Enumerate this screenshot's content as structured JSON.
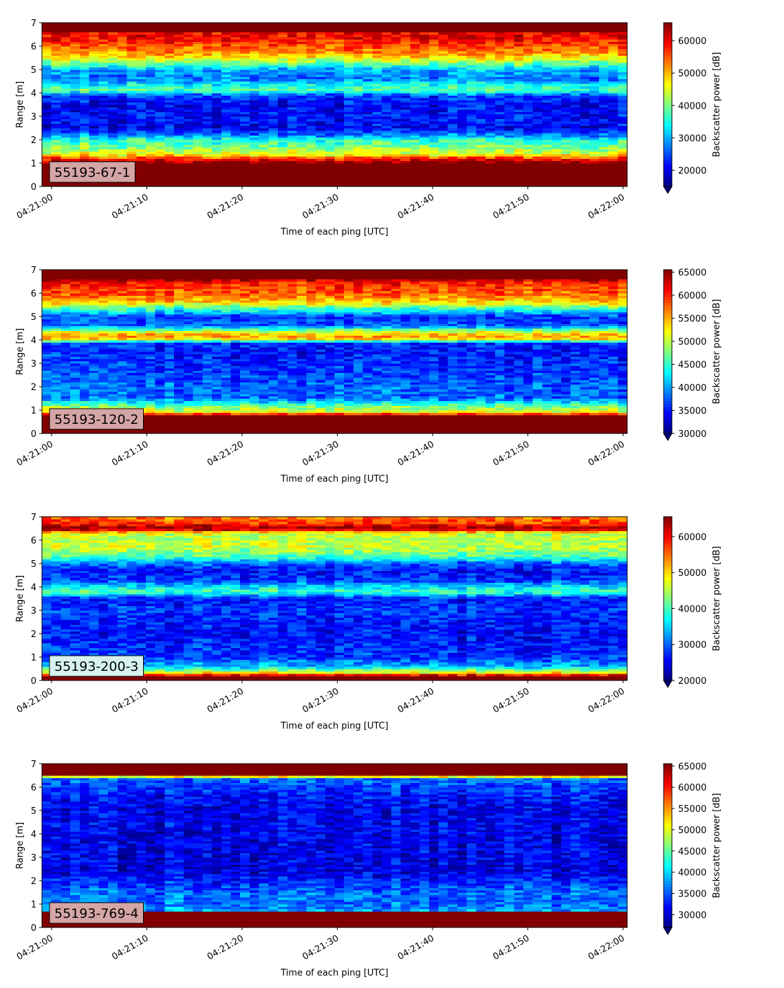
{
  "figure": {
    "xlabel": "Time of each ping [UTC]",
    "ylabel": "Range [m]",
    "colorbar_label": "Backscatter power [dB]",
    "colormap": "jet",
    "colormap_extend": "min",
    "x_tick_labels": [
      "04:21:00",
      "04:21:10",
      "04:21:20",
      "04:21:30",
      "04:21:40",
      "04:21:50",
      "04:22:00"
    ],
    "y_tick_labels": [
      "0",
      "1",
      "2",
      "3",
      "4",
      "5",
      "6",
      "7"
    ]
  },
  "chart_data": [
    {
      "type": "heatmap",
      "label": "55193-67-1",
      "label_box_color": "#d4a5a5",
      "x": {
        "start": "04:21:00",
        "end": "04:22:00",
        "unit": "UTC time"
      },
      "ylim": [
        0,
        7
      ],
      "ylabel": "Range [m]",
      "xlabel": "Time of each ping [UTC]",
      "colorbar": {
        "min": 15000,
        "max": 65535,
        "ticks": [
          20000,
          30000,
          40000,
          50000,
          60000
        ],
        "label": "Backscatter power [dB]"
      },
      "profile_by_range": [
        {
          "range": 0.0,
          "value": 65535
        },
        {
          "range": 0.25,
          "value": 65535
        },
        {
          "range": 1.0,
          "value": 65535
        },
        {
          "range": 1.2,
          "value": 58000
        },
        {
          "range": 1.4,
          "value": 45000
        },
        {
          "range": 1.7,
          "value": 40000
        },
        {
          "range": 2.0,
          "value": 36000
        },
        {
          "range": 2.2,
          "value": 28000
        },
        {
          "range": 2.5,
          "value": 21000
        },
        {
          "range": 3.0,
          "value": 22000
        },
        {
          "range": 3.5,
          "value": 21000
        },
        {
          "range": 3.9,
          "value": 24000
        },
        {
          "range": 4.1,
          "value": 38000
        },
        {
          "range": 4.3,
          "value": 36000
        },
        {
          "range": 4.6,
          "value": 27000
        },
        {
          "range": 5.0,
          "value": 30000
        },
        {
          "range": 5.3,
          "value": 40000
        },
        {
          "range": 5.6,
          "value": 50000
        },
        {
          "range": 6.0,
          "value": 55000
        },
        {
          "range": 6.3,
          "value": 59000
        },
        {
          "range": 6.6,
          "value": 60000
        },
        {
          "range": 6.65,
          "value": 65535
        },
        {
          "range": 7.0,
          "value": 65535
        }
      ]
    },
    {
      "type": "heatmap",
      "label": "55193-120-2",
      "label_box_color": "#d4a5a5",
      "x": {
        "start": "04:21:00",
        "end": "04:22:00",
        "unit": "UTC time"
      },
      "ylim": [
        0,
        7
      ],
      "ylabel": "Range [m]",
      "xlabel": "Time of each ping [UTC]",
      "colorbar": {
        "min": 30000,
        "max": 65535,
        "ticks": [
          30000,
          35000,
          40000,
          45000,
          50000,
          55000,
          60000,
          65000
        ],
        "label": "Backscatter power [dB]"
      },
      "profile_by_range": [
        {
          "range": 0.0,
          "value": 65535
        },
        {
          "range": 0.25,
          "value": 65535
        },
        {
          "range": 0.8,
          "value": 65535
        },
        {
          "range": 0.9,
          "value": 52000
        },
        {
          "range": 1.2,
          "value": 47000
        },
        {
          "range": 1.5,
          "value": 38000
        },
        {
          "range": 2.0,
          "value": 38000
        },
        {
          "range": 2.5,
          "value": 36500
        },
        {
          "range": 3.0,
          "value": 36000
        },
        {
          "range": 3.5,
          "value": 35000
        },
        {
          "range": 3.9,
          "value": 36000
        },
        {
          "range": 4.0,
          "value": 52000
        },
        {
          "range": 4.2,
          "value": 56000
        },
        {
          "range": 4.4,
          "value": 49000
        },
        {
          "range": 4.6,
          "value": 38000
        },
        {
          "range": 5.0,
          "value": 36000
        },
        {
          "range": 5.3,
          "value": 44000
        },
        {
          "range": 5.6,
          "value": 53000
        },
        {
          "range": 6.0,
          "value": 58000
        },
        {
          "range": 6.5,
          "value": 60000
        },
        {
          "range": 6.6,
          "value": 65535
        },
        {
          "range": 7.0,
          "value": 65535
        }
      ]
    },
    {
      "type": "heatmap",
      "label": "55193-200-3",
      "label_box_color": "#d6f2f0",
      "x": {
        "start": "04:21:00",
        "end": "04:22:00",
        "unit": "UTC time"
      },
      "ylim": [
        0,
        7
      ],
      "ylabel": "Range [m]",
      "xlabel": "Time of each ping [UTC]",
      "colorbar": {
        "min": 20000,
        "max": 65535,
        "ticks": [
          20000,
          30000,
          40000,
          50000,
          60000
        ],
        "label": "Backscatter power [dB]"
      },
      "profile_by_range": [
        {
          "range": 0.0,
          "value": 65535
        },
        {
          "range": 0.2,
          "value": 65535
        },
        {
          "range": 0.35,
          "value": 48000
        },
        {
          "range": 0.6,
          "value": 34000
        },
        {
          "range": 1.0,
          "value": 28000
        },
        {
          "range": 1.5,
          "value": 27000
        },
        {
          "range": 2.0,
          "value": 26000
        },
        {
          "range": 2.5,
          "value": 26500
        },
        {
          "range": 3.0,
          "value": 28000
        },
        {
          "range": 3.5,
          "value": 26000
        },
        {
          "range": 3.8,
          "value": 40000
        },
        {
          "range": 4.0,
          "value": 36000
        },
        {
          "range": 4.3,
          "value": 28000
        },
        {
          "range": 4.7,
          "value": 26000
        },
        {
          "range": 5.0,
          "value": 30000
        },
        {
          "range": 5.3,
          "value": 40000
        },
        {
          "range": 5.7,
          "value": 46000
        },
        {
          "range": 6.0,
          "value": 45000
        },
        {
          "range": 6.3,
          "value": 46000
        },
        {
          "range": 6.5,
          "value": 65535
        },
        {
          "range": 6.7,
          "value": 58000
        },
        {
          "range": 7.0,
          "value": 54000
        }
      ]
    },
    {
      "type": "heatmap",
      "label": "55193-769-4",
      "label_box_color": "#d4a5a5",
      "x": {
        "start": "04:21:00",
        "end": "04:22:00",
        "unit": "UTC time"
      },
      "ylim": [
        0,
        7
      ],
      "ylabel": "Range [m]",
      "xlabel": "Time of each ping [UTC]",
      "colorbar": {
        "min": 27000,
        "max": 65535,
        "ticks": [
          30000,
          35000,
          40000,
          45000,
          50000,
          55000,
          60000,
          65000
        ],
        "label": "Backscatter power [dB]"
      },
      "profile_by_range": [
        {
          "range": 0.0,
          "value": 65535
        },
        {
          "range": 0.25,
          "value": 65535
        },
        {
          "range": 0.65,
          "value": 65535
        },
        {
          "range": 0.75,
          "value": 38000
        },
        {
          "range": 1.0,
          "value": 36000
        },
        {
          "range": 1.5,
          "value": 36000
        },
        {
          "range": 2.0,
          "value": 33000
        },
        {
          "range": 2.5,
          "value": 30500
        },
        {
          "range": 3.0,
          "value": 31000
        },
        {
          "range": 3.5,
          "value": 31000
        },
        {
          "range": 4.0,
          "value": 31000
        },
        {
          "range": 4.5,
          "value": 31500
        },
        {
          "range": 5.0,
          "value": 31000
        },
        {
          "range": 5.5,
          "value": 32000
        },
        {
          "range": 6.0,
          "value": 34000
        },
        {
          "range": 6.4,
          "value": 36000
        },
        {
          "range": 6.5,
          "value": 65535
        },
        {
          "range": 7.0,
          "value": 65535
        }
      ]
    }
  ]
}
